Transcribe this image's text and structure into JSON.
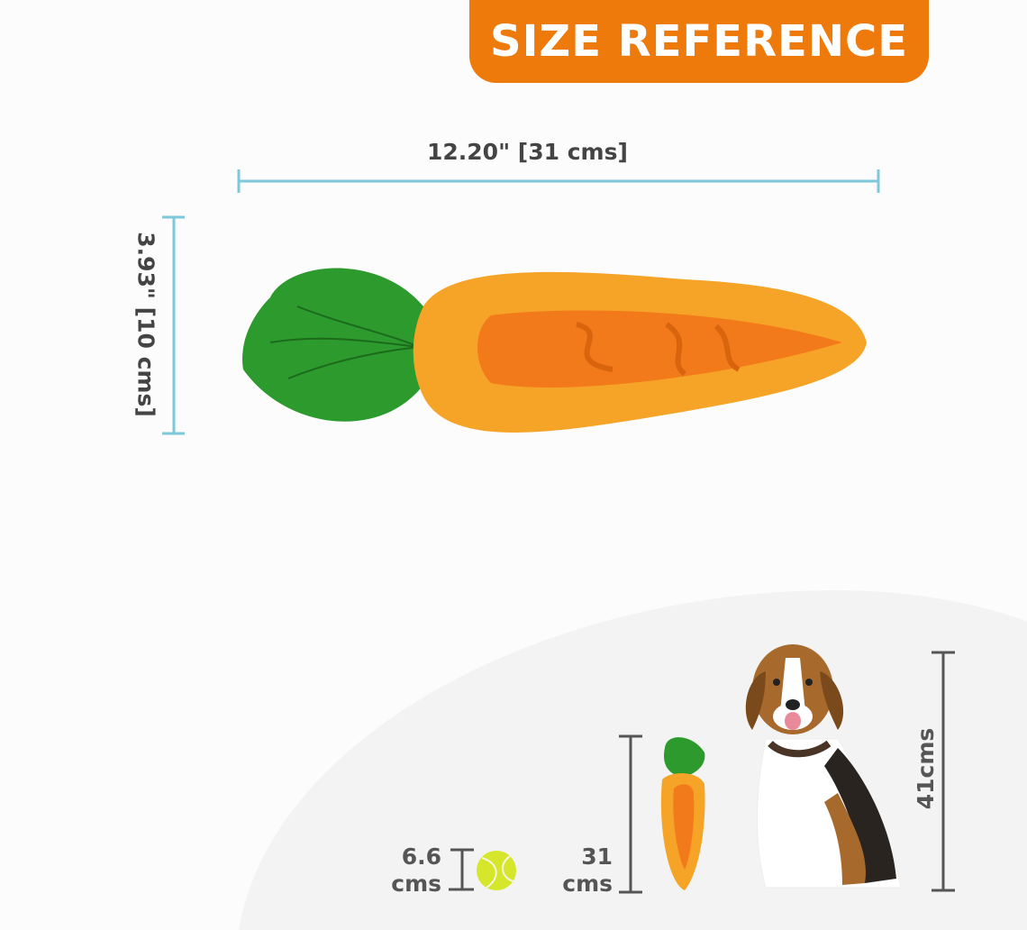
{
  "banner": {
    "title": "SIZE REFERENCE"
  },
  "dimensions": {
    "width_label": "12.20\" [31 cms]",
    "height_label": "3.93\" [10 cms]"
  },
  "comparison": {
    "ball": {
      "value": "6.6",
      "unit": "cms"
    },
    "toy": {
      "value": "31",
      "unit": "cms"
    },
    "dog": {
      "label": "41cms"
    }
  },
  "colors": {
    "accent": "#ef7a0c",
    "dimension_line": "#7ec8dc",
    "comparison_line": "#555555"
  }
}
